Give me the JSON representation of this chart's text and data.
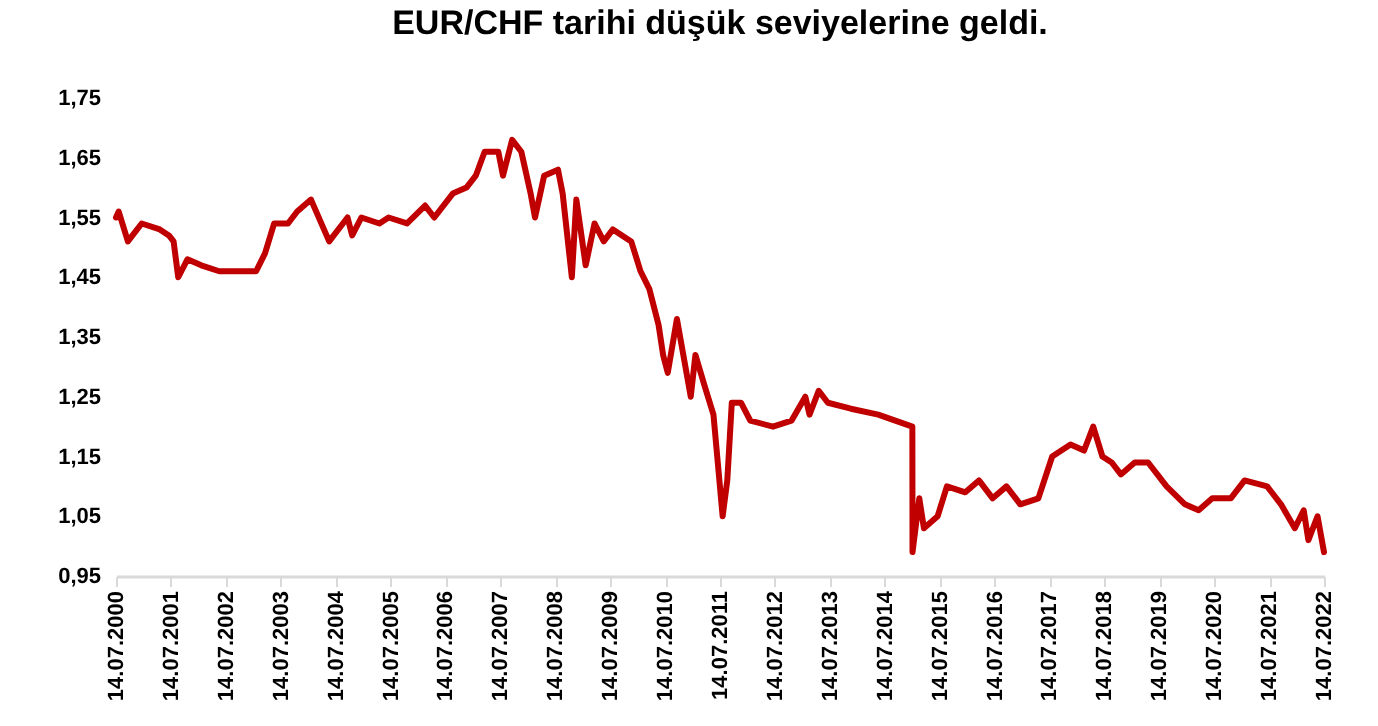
{
  "chart_data": {
    "type": "line",
    "title": "EUR/CHF tarihi düşük seviyelerine geldi.",
    "xlim": [
      "2000-07-14",
      "2022-07-14"
    ],
    "xticks": [
      {
        "value": "2000-07-14",
        "label": "14.07.2000"
      },
      {
        "value": "2001-07-14",
        "label": "14.07.2001"
      },
      {
        "value": "2002-07-14",
        "label": "14.07.2002"
      },
      {
        "value": "2003-07-14",
        "label": "14.07.2003"
      },
      {
        "value": "2004-07-14",
        "label": "14.07.2004"
      },
      {
        "value": "2005-07-14",
        "label": "14.07.2005"
      },
      {
        "value": "2006-07-14",
        "label": "14.07.2006"
      },
      {
        "value": "2007-07-14",
        "label": "14.07.2007"
      },
      {
        "value": "2008-07-14",
        "label": "14.07.2008"
      },
      {
        "value": "2009-07-14",
        "label": "14.07.2009"
      },
      {
        "value": "2010-07-14",
        "label": "14.07.2010"
      },
      {
        "value": "2011-07-14",
        "label": "14.07.2011"
      },
      {
        "value": "2012-07-14",
        "label": "14.07.2012"
      },
      {
        "value": "2013-07-14",
        "label": "14.07.2013"
      },
      {
        "value": "2014-07-14",
        "label": "14.07.2014"
      },
      {
        "value": "2015-07-14",
        "label": "14.07.2015"
      },
      {
        "value": "2016-07-14",
        "label": "14.07.2016"
      },
      {
        "value": "2017-07-14",
        "label": "14.07.2017"
      },
      {
        "value": "2018-07-14",
        "label": "14.07.2018"
      },
      {
        "value": "2019-07-14",
        "label": "14.07.2019"
      },
      {
        "value": "2020-07-14",
        "label": "14.07.2020"
      },
      {
        "value": "2021-07-14",
        "label": "14.07.2021"
      },
      {
        "value": "2022-07-14",
        "label": "14.07.2022"
      }
    ],
    "ylim": [
      0.95,
      1.75
    ],
    "yticks": [
      {
        "value": 0.95,
        "label": "0,95"
      },
      {
        "value": 1.05,
        "label": "1,05"
      },
      {
        "value": 1.15,
        "label": "1,15"
      },
      {
        "value": 1.25,
        "label": "1,25"
      },
      {
        "value": 1.35,
        "label": "1,35"
      },
      {
        "value": 1.45,
        "label": "1,45"
      },
      {
        "value": 1.55,
        "label": "1,55"
      },
      {
        "value": 1.65,
        "label": "1,65"
      },
      {
        "value": 1.75,
        "label": "1,75"
      }
    ],
    "x": [
      "2000-07-14",
      "2000-08",
      "2000-10",
      "2000-11",
      "2001-01",
      "2001-05",
      "2001-07",
      "2001-08",
      "2001-09",
      "2001-11",
      "2002-02",
      "2002-06",
      "2002-10",
      "2003-02",
      "2003-04",
      "2003-06",
      "2003-09",
      "2003-11",
      "2004-02",
      "2004-06",
      "2004-10",
      "2004-11",
      "2005-01",
      "2005-05",
      "2005-07",
      "2005-11",
      "2006-03",
      "2006-05",
      "2006-09",
      "2006-12",
      "2007-02",
      "2007-04",
      "2007-07",
      "2007-08",
      "2007-10",
      "2007-12",
      "2008-02",
      "2008-03",
      "2008-05",
      "2008-08",
      "2008-09",
      "2008-11",
      "2008-12",
      "2009-02",
      "2009-04",
      "2009-06",
      "2009-08",
      "2009-12",
      "2010-02",
      "2010-04",
      "2010-06",
      "2010-07",
      "2010-08",
      "2010-10",
      "2011-01",
      "2011-02",
      "2011-04",
      "2011-06",
      "2011-08",
      "2011-09",
      "2011-10",
      "2011-12",
      "2012-02",
      "2012-07",
      "2012-11",
      "2013-02",
      "2013-03",
      "2013-05",
      "2013-07",
      "2013-12",
      "2014-06",
      "2015-01-14",
      "2015-01-15",
      "2015-03",
      "2015-04",
      "2015-07",
      "2015-09",
      "2016-01",
      "2016-04",
      "2016-07",
      "2016-10",
      "2017-01",
      "2017-05",
      "2017-08",
      "2017-12",
      "2018-03",
      "2018-05",
      "2018-07",
      "2018-09",
      "2018-11",
      "2019-02",
      "2019-05",
      "2019-09",
      "2020-01",
      "2020-04",
      "2020-07",
      "2020-11",
      "2021-02",
      "2021-07",
      "2021-10",
      "2022-01",
      "2022-03",
      "2022-04",
      "2022-06",
      "2022-07-14"
    ],
    "series": [
      {
        "color": "#c00000",
        "values": [
          1.55,
          1.56,
          1.51,
          1.52,
          1.54,
          1.53,
          1.52,
          1.51,
          1.45,
          1.48,
          1.47,
          1.46,
          1.46,
          1.46,
          1.49,
          1.54,
          1.54,
          1.56,
          1.58,
          1.51,
          1.55,
          1.52,
          1.55,
          1.54,
          1.55,
          1.54,
          1.57,
          1.55,
          1.59,
          1.6,
          1.62,
          1.66,
          1.66,
          1.62,
          1.68,
          1.66,
          1.59,
          1.55,
          1.62,
          1.63,
          1.59,
          1.45,
          1.58,
          1.47,
          1.54,
          1.51,
          1.53,
          1.51,
          1.46,
          1.43,
          1.37,
          1.32,
          1.29,
          1.38,
          1.25,
          1.32,
          1.27,
          1.22,
          1.05,
          1.11,
          1.24,
          1.24,
          1.21,
          1.2,
          1.21,
          1.25,
          1.22,
          1.26,
          1.24,
          1.23,
          1.22,
          1.2,
          0.99,
          1.08,
          1.03,
          1.05,
          1.1,
          1.09,
          1.11,
          1.08,
          1.1,
          1.07,
          1.08,
          1.15,
          1.17,
          1.16,
          1.2,
          1.15,
          1.14,
          1.12,
          1.14,
          1.14,
          1.1,
          1.07,
          1.06,
          1.08,
          1.08,
          1.11,
          1.1,
          1.07,
          1.03,
          1.06,
          1.01,
          1.05,
          0.99
        ]
      }
    ],
    "line_style": "solid",
    "marker": "none"
  }
}
